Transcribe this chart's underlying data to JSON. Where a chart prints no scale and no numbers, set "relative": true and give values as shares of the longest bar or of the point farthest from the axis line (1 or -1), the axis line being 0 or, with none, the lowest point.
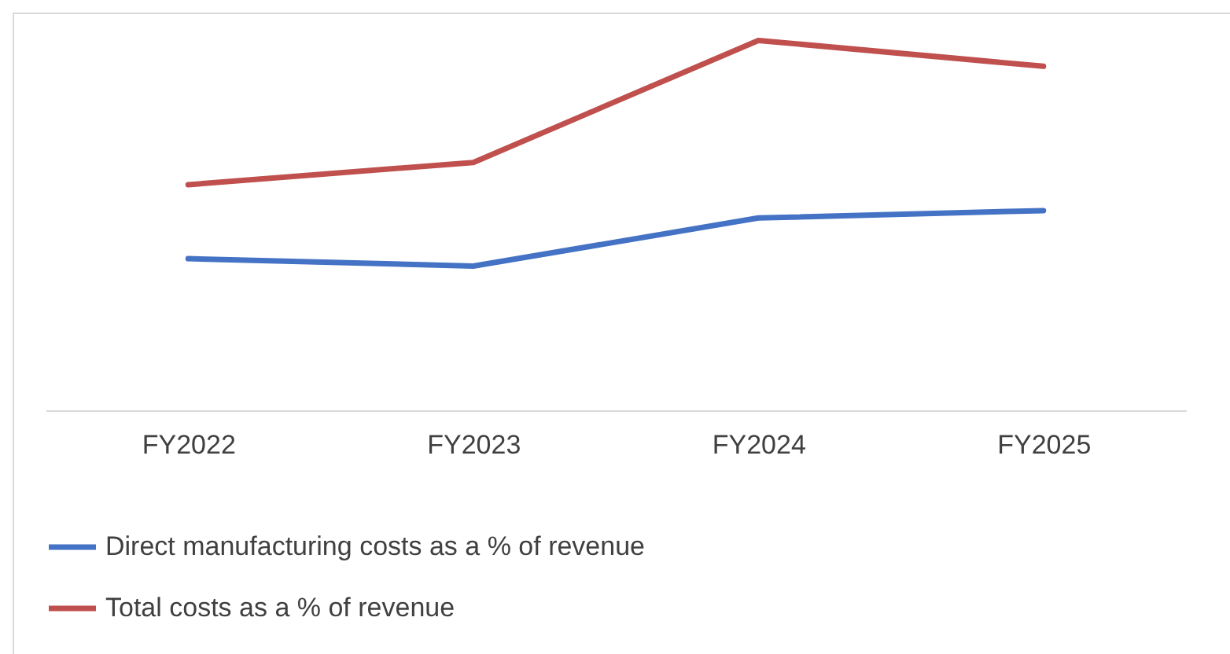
{
  "chart_data": {
    "type": "line",
    "relative": true,
    "categories": [
      "FY2022",
      "FY2023",
      "FY2024",
      "FY2025"
    ],
    "legend": "bottom",
    "grid": false,
    "marker": "none",
    "series": [
      {
        "name": "Direct manufacturing costs as a % of revenue",
        "color": "#4472c4",
        "values": [
          0.41,
          0.39,
          0.52,
          0.54
        ]
      },
      {
        "name": "Total costs as a % of revenue",
        "color": "#c0504d",
        "values": [
          0.61,
          0.67,
          1,
          0.93
        ]
      }
    ]
  }
}
